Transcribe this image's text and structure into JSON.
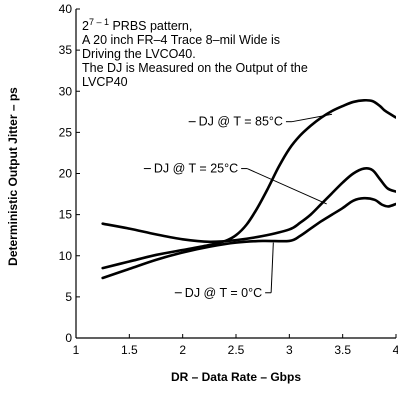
{
  "chart_data": {
    "type": "line",
    "xlabel": "DR – Data Rate – Gbps",
    "ylabel": "Deterministic Output Jitter – ps",
    "xlim": [
      1,
      4
    ],
    "ylim": [
      0,
      40
    ],
    "x_ticks": [
      {
        "value": 1,
        "label": "1"
      },
      {
        "value": 1.5,
        "label": "1.5"
      },
      {
        "value": 2,
        "label": "2"
      },
      {
        "value": 2.5,
        "label": "2.5"
      },
      {
        "value": 3,
        "label": "3"
      },
      {
        "value": 3.5,
        "label": "3.5"
      },
      {
        "value": 4,
        "label": "4"
      }
    ],
    "y_ticks": [
      {
        "value": 0,
        "label": "0"
      },
      {
        "value": 5,
        "label": "5"
      },
      {
        "value": 10,
        "label": "10"
      },
      {
        "value": 15,
        "label": "15"
      },
      {
        "value": 20,
        "label": "20"
      },
      {
        "value": 25,
        "label": "25"
      },
      {
        "value": 30,
        "label": "30"
      },
      {
        "value": 35,
        "label": "35"
      },
      {
        "value": 40,
        "label": "40"
      }
    ],
    "grid": false,
    "annotation": {
      "prbs_base": "2",
      "prbs_exponent": "7 – 1",
      "prbs_rest": " PRBS pattern,",
      "lines": [
        "A 20 inch FR–4 Trace 8–mil Wide is",
        "Driving the LVCO40.",
        "The DJ is Measured on the Output of the",
        "LVCP40"
      ]
    },
    "series": [
      {
        "name": "DJ @  T = 85°C",
        "label_position": [
          2.15,
          26.3
        ],
        "leader_to": [
          3.4,
          27.2
        ],
        "points": [
          [
            1.25,
            8.5
          ],
          [
            1.5,
            9.3
          ],
          [
            1.75,
            10.1
          ],
          [
            2.0,
            10.7
          ],
          [
            2.25,
            11.3
          ],
          [
            2.4,
            11.8
          ],
          [
            2.5,
            12.5
          ],
          [
            2.6,
            13.8
          ],
          [
            2.7,
            15.8
          ],
          [
            2.8,
            18.2
          ],
          [
            2.9,
            20.8
          ],
          [
            3.0,
            23.0
          ],
          [
            3.1,
            24.6
          ],
          [
            3.2,
            25.8
          ],
          [
            3.3,
            26.8
          ],
          [
            3.4,
            27.6
          ],
          [
            3.5,
            28.2
          ],
          [
            3.6,
            28.7
          ],
          [
            3.7,
            28.9
          ],
          [
            3.78,
            28.8
          ],
          [
            3.85,
            28.2
          ],
          [
            3.9,
            27.6
          ],
          [
            4.0,
            26.8
          ]
        ]
      },
      {
        "name": "DJ @ T = 25°C",
        "label_position": [
          1.73,
          20.6
        ],
        "leader_to": [
          3.35,
          16.3
        ],
        "points": [
          [
            1.25,
            13.9
          ],
          [
            1.5,
            13.3
          ],
          [
            1.75,
            12.6
          ],
          [
            2.0,
            12.0
          ],
          [
            2.25,
            11.7
          ],
          [
            2.5,
            11.9
          ],
          [
            2.75,
            12.4
          ],
          [
            3.0,
            13.2
          ],
          [
            3.1,
            14.0
          ],
          [
            3.2,
            15.0
          ],
          [
            3.3,
            16.3
          ],
          [
            3.4,
            17.6
          ],
          [
            3.5,
            18.9
          ],
          [
            3.6,
            20.0
          ],
          [
            3.7,
            20.6
          ],
          [
            3.78,
            20.4
          ],
          [
            3.85,
            19.3
          ],
          [
            3.92,
            18.2
          ],
          [
            4.0,
            17.8
          ]
        ]
      },
      {
        "name": "DJ @  T = 0°C",
        "label_position": [
          2.02,
          5.5
        ],
        "leader_to": [
          2.85,
          11.6
        ],
        "points": [
          [
            1.25,
            7.3
          ],
          [
            1.5,
            8.4
          ],
          [
            1.75,
            9.5
          ],
          [
            2.0,
            10.4
          ],
          [
            2.25,
            11.1
          ],
          [
            2.5,
            11.6
          ],
          [
            2.75,
            11.8
          ],
          [
            3.0,
            11.8
          ],
          [
            3.1,
            12.4
          ],
          [
            3.2,
            13.3
          ],
          [
            3.3,
            14.2
          ],
          [
            3.4,
            15.0
          ],
          [
            3.5,
            15.8
          ],
          [
            3.6,
            16.7
          ],
          [
            3.7,
            17.0
          ],
          [
            3.8,
            16.8
          ],
          [
            3.87,
            16.2
          ],
          [
            3.93,
            16.0
          ],
          [
            4.0,
            16.3
          ]
        ]
      }
    ]
  }
}
